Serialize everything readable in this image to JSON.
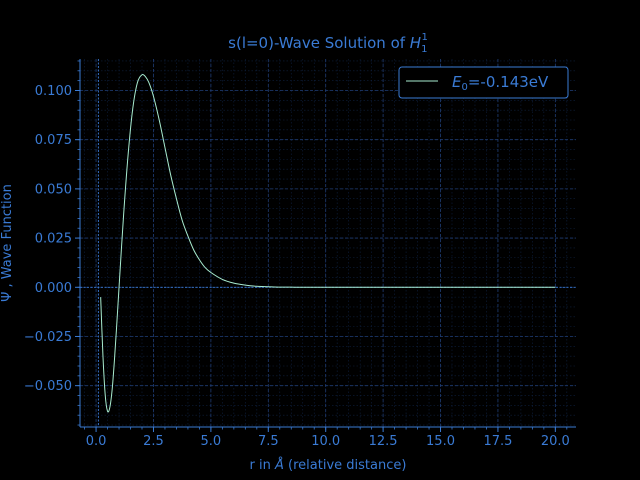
{
  "chart_data": {
    "type": "line",
    "title_main": "s(l=0)-Wave Solution of ",
    "title_symbol": "H",
    "title_sub": "1",
    "title_sup": "1",
    "xlabel_main": "r in ",
    "xlabel_symbol": "Å",
    "xlabel_rest": " (relative distance)",
    "ylabel": "Ψ , Wave Function",
    "xlim": [
      -0.7,
      20.9
    ],
    "ylim": [
      -0.071,
      0.116
    ],
    "xticks": [
      0.0,
      2.5,
      5.0,
      7.5,
      10.0,
      12.5,
      15.0,
      17.5,
      20.0
    ],
    "xtick_labels": [
      "0.0",
      "2.5",
      "5.0",
      "7.5",
      "10.0",
      "12.5",
      "15.0",
      "17.5",
      "20.0"
    ],
    "yticks": [
      -0.05,
      -0.025,
      0.0,
      0.025,
      0.05,
      0.075,
      0.1
    ],
    "ytick_labels": [
      "−0.050",
      "−0.025",
      "0.000",
      "0.025",
      "0.050",
      "0.075",
      "0.100"
    ],
    "grid": true,
    "legend_position": "top-right",
    "series": [
      {
        "name_symbol": "E",
        "name_sub": "0",
        "name_rest": "=-0.143eV",
        "color": "#a8ecd0",
        "x": [
          0.2,
          0.3,
          0.4,
          0.5,
          0.6,
          0.7,
          0.8,
          0.9,
          1.0,
          1.2,
          1.4,
          1.6,
          1.8,
          2.0,
          2.15,
          2.3,
          2.5,
          2.75,
          3.0,
          3.25,
          3.5,
          3.75,
          4.0,
          4.25,
          4.5,
          4.75,
          5.0,
          5.5,
          6.0,
          6.5,
          7.0,
          7.5,
          8.0,
          8.5,
          9.0,
          10.0,
          12.0,
          15.0,
          20.0
        ],
        "y": [
          -0.005,
          -0.035,
          -0.055,
          -0.063,
          -0.061,
          -0.052,
          -0.037,
          -0.019,
          0.0,
          0.037,
          0.068,
          0.091,
          0.104,
          0.108,
          0.107,
          0.104,
          0.097,
          0.085,
          0.071,
          0.057,
          0.045,
          0.034,
          0.026,
          0.019,
          0.014,
          0.01,
          0.0075,
          0.004,
          0.0021,
          0.0011,
          0.0005,
          0.0003,
          0.0001,
          5e-05,
          0.0,
          0.0,
          0.0,
          0.0,
          0.0
        ]
      }
    ],
    "colors": {
      "background": "#000000",
      "axes": "#3a7bd5",
      "grid_major": "#1f3c73",
      "grid_minor": "#0e1f3d",
      "zero_lines": "#3a7bd5"
    }
  }
}
